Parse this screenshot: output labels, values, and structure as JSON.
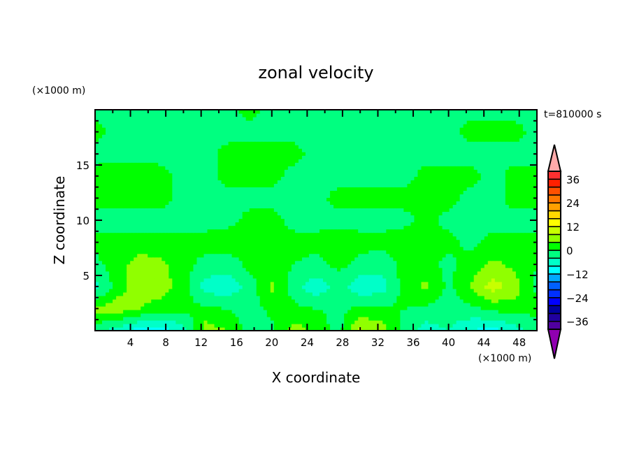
{
  "chart_data": {
    "type": "heatmap",
    "title": "zonal velocity",
    "time_label": "t=810000 s",
    "xlabel": "X coordinate",
    "ylabel": "Z coordinate",
    "x_unit": "(×1000 m)",
    "y_unit": "(×1000 m)",
    "xlim": [
      0,
      50
    ],
    "ylim": [
      0,
      20
    ],
    "x_ticks": [
      4,
      8,
      12,
      16,
      20,
      24,
      28,
      32,
      36,
      40,
      44,
      48
    ],
    "y_ticks": [
      5,
      10,
      15
    ],
    "x": [
      0,
      2.5,
      5,
      7.5,
      10,
      12.5,
      15,
      17.5,
      20,
      22.5,
      25,
      27.5,
      30,
      32.5,
      35,
      37.5,
      40,
      42.5,
      45,
      47.5,
      50
    ],
    "z": [
      0,
      2,
      4,
      6,
      8,
      10,
      12,
      14,
      16,
      18,
      20
    ],
    "values": [
      [
        -2,
        -6,
        -10,
        -10,
        -6,
        6,
        4,
        -2,
        -1,
        6,
        3,
        -2,
        9,
        6,
        -2,
        -6,
        -4,
        -8,
        -10,
        -6,
        -2
      ],
      [
        5,
        6,
        4,
        2,
        1,
        1,
        0,
        -2,
        1,
        1,
        0,
        -1,
        1,
        1,
        0,
        -1,
        -2,
        -1,
        1,
        2,
        1
      ],
      [
        -6,
        2,
        6,
        6,
        2,
        -6,
        -7,
        -2,
        5,
        -2,
        -7,
        -2,
        -7,
        -6,
        2,
        5,
        -1,
        4,
        10,
        6,
        -1
      ],
      [
        -1,
        2,
        6,
        5,
        1,
        -1,
        -2,
        1,
        1,
        0,
        -1,
        1,
        -1,
        -2,
        1,
        1,
        -1,
        2,
        5,
        3,
        0
      ],
      [
        1,
        1,
        2,
        1,
        1,
        1,
        2,
        1,
        2,
        1,
        1,
        2,
        1,
        1,
        2,
        1,
        1,
        -1,
        1,
        1,
        1
      ],
      [
        -1,
        -1,
        -2,
        -1,
        -1,
        -1,
        -1,
        1,
        1,
        -1,
        -1,
        -1,
        -1,
        -1,
        -1,
        1,
        -1,
        -1,
        -1,
        -1,
        -1
      ],
      [
        1,
        1,
        2,
        1,
        -1,
        -1,
        -1,
        -1,
        -1,
        -1,
        -1,
        1,
        1,
        1,
        1,
        1,
        1,
        -1,
        -1,
        1,
        1
      ],
      [
        1,
        2,
        2,
        1,
        -1,
        -1,
        1,
        1,
        1,
        -1,
        -1,
        -1,
        -1,
        -1,
        -1,
        1,
        1,
        1,
        -1,
        1,
        1
      ],
      [
        -1,
        -1,
        -1,
        -1,
        -1,
        -1,
        1,
        1,
        1,
        1,
        -1,
        -1,
        -1,
        -1,
        -1,
        -1,
        -1,
        -1,
        -1,
        -1,
        -1
      ],
      [
        1,
        -1,
        -1,
        -1,
        -1,
        -1,
        -1,
        -1,
        -1,
        -1,
        -1,
        -1,
        -1,
        -1,
        -1,
        -1,
        -1,
        1,
        1,
        1,
        -1
      ],
      [
        -1,
        -1,
        -1,
        -1,
        -1,
        -1,
        -1,
        1,
        -1,
        -1,
        -1,
        -2,
        -1,
        -1,
        -1,
        -1,
        -1,
        -1,
        -1,
        -1,
        -1
      ]
    ],
    "colorbar": {
      "levels_min": -40,
      "levels_max": 40,
      "level_step": 4,
      "tick_labels": [
        "36",
        "24",
        "12",
        "0",
        "−12",
        "−24",
        "−36"
      ],
      "tick_values": [
        36,
        24,
        12,
        0,
        -12,
        -24,
        -36
      ],
      "colors": [
        "#5000a0",
        "#2000a0",
        "#0000a0",
        "#0000ff",
        "#0030ff",
        "#0060ff",
        "#00a8ff",
        "#00ffff",
        "#00ffc8",
        "#00ff80",
        "#00ff00",
        "#90ff00",
        "#c8ff00",
        "#ffff00",
        "#ffd800",
        "#ffa000",
        "#ff7800",
        "#ff5000",
        "#ff2000",
        "#ff3030"
      ],
      "over_color": "#ffaaaa",
      "under_color": "#9000b0"
    }
  }
}
